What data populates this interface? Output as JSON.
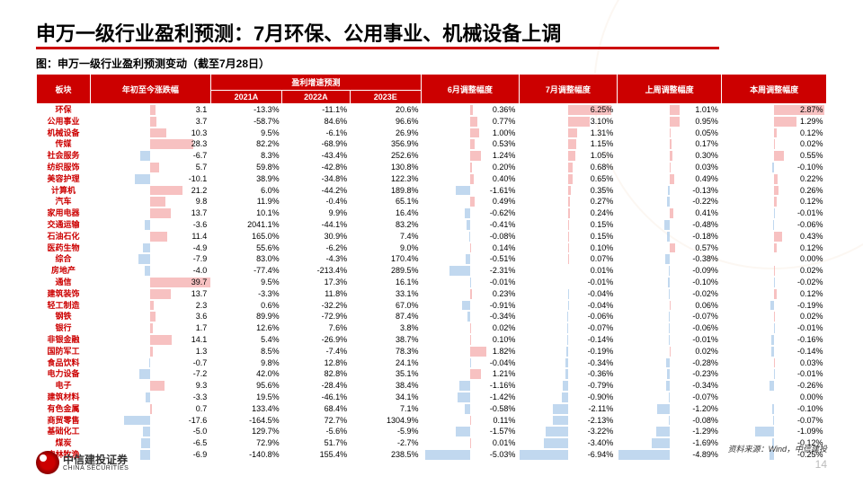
{
  "title": "申万一级行业盈利预测：7月环保、公用事业、机械设备上调",
  "subtitle": "图：申万一级行业盈利预测变动（截至7月28日）",
  "source": "资料来源：Wind，中信建投",
  "logo": {
    "cn": "中信建投证券",
    "en": "CHINA SECURITIES"
  },
  "page": "14",
  "colors": {
    "header_bg": "#c00",
    "header_fg": "#fff",
    "pos_bar": "#f4a6a6",
    "neg_bar": "#a6c8e8",
    "sector_fg": "#c00"
  },
  "headers": {
    "sector": "板块",
    "ytd": "年初至今涨跌幅",
    "growth_group": "盈利增速预测",
    "growth_cols": [
      "2021A",
      "2022A",
      "2023E"
    ],
    "adj_cols": [
      "6月调整幅度",
      "7月调整幅度",
      "上周调整幅度",
      "本周调整幅度"
    ]
  },
  "col_widths": {
    "sector": 60,
    "ytd": 70,
    "growth": 55,
    "adj": 95
  },
  "bar_columns": [
    "ytd",
    "adj0",
    "adj1",
    "adj2",
    "adj3"
  ],
  "bar_ranges": {
    "ytd": 40,
    "adj0": 5.5,
    "adj1": 7,
    "adj2": 5,
    "adj3": 3
  },
  "rows": [
    {
      "name": "环保",
      "ytd": 3.1,
      "g": [
        -13.3,
        -11.1,
        20.6
      ],
      "a": [
        0.36,
        6.25,
        1.01,
        2.87
      ]
    },
    {
      "name": "公用事业",
      "ytd": 3.7,
      "g": [
        -58.7,
        84.6,
        96.6
      ],
      "a": [
        0.77,
        3.1,
        0.95,
        1.29
      ]
    },
    {
      "name": "机械设备",
      "ytd": 10.3,
      "g": [
        9.5,
        -6.1,
        26.9
      ],
      "a": [
        1.0,
        1.31,
        0.05,
        0.12
      ]
    },
    {
      "name": "传媒",
      "ytd": 28.3,
      "g": [
        82.2,
        -68.9,
        356.9
      ],
      "a": [
        0.53,
        1.15,
        0.17,
        0.02
      ]
    },
    {
      "name": "社会服务",
      "ytd": -6.7,
      "g": [
        8.3,
        -43.4,
        252.6
      ],
      "a": [
        1.24,
        1.05,
        0.3,
        0.55
      ]
    },
    {
      "name": "纺织服饰",
      "ytd": 5.7,
      "g": [
        59.8,
        -42.8,
        130.8
      ],
      "a": [
        0.2,
        0.68,
        0.03,
        -0.1
      ]
    },
    {
      "name": "美容护理",
      "ytd": -10.1,
      "g": [
        38.9,
        -34.8,
        122.3
      ],
      "a": [
        0.4,
        0.65,
        0.49,
        0.22
      ]
    },
    {
      "name": "计算机",
      "ytd": 21.2,
      "g": [
        6.0,
        -44.2,
        189.8
      ],
      "a": [
        -1.61,
        0.35,
        -0.13,
        0.26
      ]
    },
    {
      "name": "汽车",
      "ytd": 9.8,
      "g": [
        11.9,
        -0.4,
        65.1
      ],
      "a": [
        0.49,
        0.27,
        -0.22,
        0.12
      ]
    },
    {
      "name": "家用电器",
      "ytd": 13.7,
      "g": [
        10.1,
        9.9,
        16.4
      ],
      "a": [
        -0.62,
        0.24,
        0.41,
        -0.01
      ]
    },
    {
      "name": "交通运输",
      "ytd": -3.6,
      "g": [
        2041.1,
        -44.1,
        83.2
      ],
      "a": [
        -0.41,
        0.15,
        -0.48,
        -0.06
      ]
    },
    {
      "name": "石油石化",
      "ytd": 11.4,
      "g": [
        165.0,
        30.9,
        7.4
      ],
      "a": [
        -0.08,
        0.15,
        -0.18,
        0.43
      ]
    },
    {
      "name": "医药生物",
      "ytd": -4.9,
      "g": [
        55.6,
        -6.2,
        9.0
      ],
      "a": [
        0.14,
        0.1,
        0.57,
        0.12
      ]
    },
    {
      "name": "综合",
      "ytd": -7.9,
      "g": [
        83.0,
        -4.3,
        170.4
      ],
      "a": [
        -0.51,
        0.07,
        -0.38,
        0.0
      ]
    },
    {
      "name": "房地产",
      "ytd": -4.0,
      "g": [
        -77.4,
        -213.4,
        289.5
      ],
      "a": [
        -2.31,
        0.01,
        -0.09,
        0.02
      ]
    },
    {
      "name": "通信",
      "ytd": 39.7,
      "g": [
        9.5,
        17.3,
        16.1
      ],
      "a": [
        -0.01,
        -0.01,
        -0.1,
        -0.02
      ]
    },
    {
      "name": "建筑装饰",
      "ytd": 13.7,
      "g": [
        -3.3,
        11.8,
        33.1
      ],
      "a": [
        0.23,
        -0.04,
        -0.02,
        0.12
      ]
    },
    {
      "name": "轻工制造",
      "ytd": 2.3,
      "g": [
        0.6,
        -32.2,
        67.0
      ],
      "a": [
        -0.91,
        -0.04,
        0.06,
        -0.19
      ]
    },
    {
      "name": "钢铁",
      "ytd": 3.6,
      "g": [
        89.9,
        -72.9,
        87.4
      ],
      "a": [
        -0.34,
        -0.06,
        -0.07,
        0.02
      ]
    },
    {
      "name": "银行",
      "ytd": 1.7,
      "g": [
        12.6,
        7.6,
        3.8
      ],
      "a": [
        0.02,
        -0.07,
        -0.06,
        -0.01
      ]
    },
    {
      "name": "非银金融",
      "ytd": 14.1,
      "g": [
        5.4,
        -26.9,
        38.7
      ],
      "a": [
        0.1,
        -0.14,
        -0.01,
        -0.16
      ]
    },
    {
      "name": "国防军工",
      "ytd": 1.3,
      "g": [
        8.5,
        -7.4,
        78.3
      ],
      "a": [
        1.82,
        -0.19,
        0.02,
        -0.14
      ]
    },
    {
      "name": "食品饮料",
      "ytd": -0.7,
      "g": [
        9.8,
        12.8,
        24.1
      ],
      "a": [
        -0.04,
        -0.34,
        -0.28,
        0.03
      ]
    },
    {
      "name": "电力设备",
      "ytd": -7.2,
      "g": [
        42.0,
        82.8,
        35.1
      ],
      "a": [
        1.21,
        -0.36,
        -0.23,
        -0.01
      ]
    },
    {
      "name": "电子",
      "ytd": 9.3,
      "g": [
        95.6,
        -28.4,
        38.4
      ],
      "a": [
        -1.16,
        -0.79,
        -0.34,
        -0.26
      ]
    },
    {
      "name": "建筑材料",
      "ytd": -3.3,
      "g": [
        19.5,
        -46.1,
        34.1
      ],
      "a": [
        -1.42,
        -0.9,
        -0.07,
        0.0
      ]
    },
    {
      "name": "有色金属",
      "ytd": 0.7,
      "g": [
        133.4,
        68.4,
        7.1
      ],
      "a": [
        -0.58,
        -2.11,
        -1.2,
        -0.1
      ]
    },
    {
      "name": "商贸零售",
      "ytd": -17.6,
      "g": [
        -164.5,
        72.7,
        1304.9
      ],
      "a": [
        0.11,
        -2.13,
        -0.08,
        -0.07
      ]
    },
    {
      "name": "基础化工",
      "ytd": -5.0,
      "g": [
        129.7,
        -5.6,
        -5.9
      ],
      "a": [
        -1.57,
        -3.22,
        -1.29,
        -1.09
      ]
    },
    {
      "name": "煤炭",
      "ytd": -6.5,
      "g": [
        72.9,
        51.7,
        -2.7
      ],
      "a": [
        0.01,
        -3.4,
        -1.69,
        -0.12
      ]
    },
    {
      "name": "农林牧渔",
      "ytd": -6.9,
      "g": [
        -140.8,
        155.4,
        238.5
      ],
      "a": [
        -5.03,
        -6.94,
        -4.89,
        -0.25
      ]
    }
  ]
}
